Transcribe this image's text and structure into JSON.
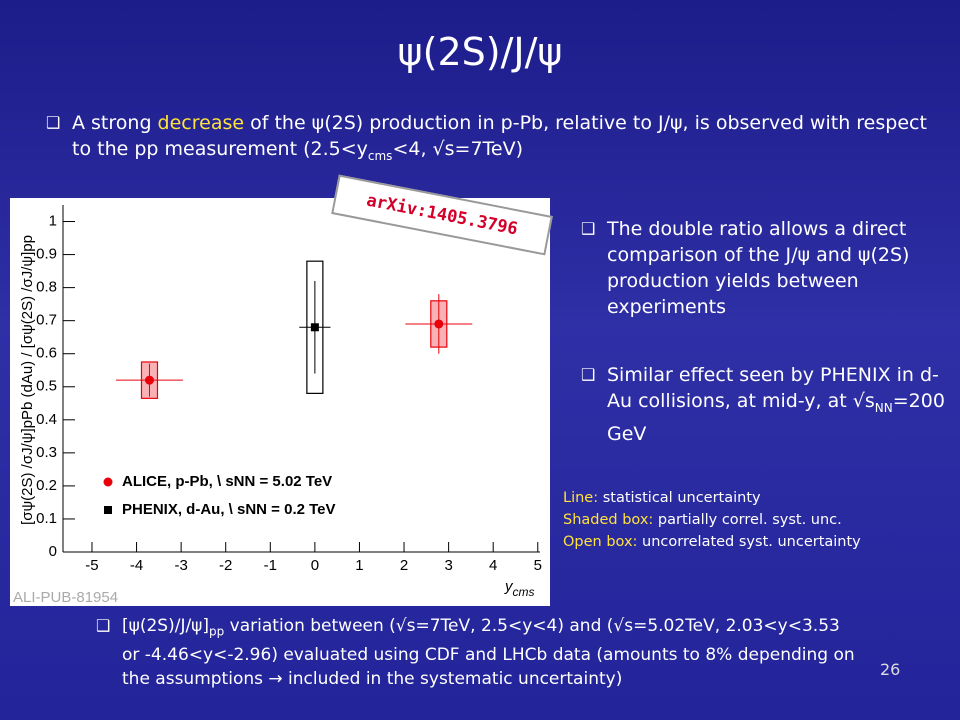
{
  "title": "ψ(2S)/J/ψ",
  "bullet_top": {
    "parts": [
      "A strong ",
      "decrease",
      " of the ψ(2S) production in p-Pb, relative to J/ψ, is observed with respect to the pp measurement (2.5<y",
      "cms",
      "<4, √s=7TeV)"
    ]
  },
  "bullets_right": [
    {
      "parts": [
        "The double ratio allows a direct comparison of the J/ψ and ψ(2S) production yields between experiments"
      ]
    },
    {
      "parts": [
        "Similar effect seen by PHENIX in d-Au collisions, at mid-y, at √s",
        "NN",
        "=200 GeV"
      ]
    }
  ],
  "notes": [
    {
      "label": "Line:",
      "text": " statistical uncertainty"
    },
    {
      "label": "Shaded box:",
      "text": " partially correl. syst. unc."
    },
    {
      "label": "Open box:",
      "text": " uncorrelated syst. uncertainty"
    }
  ],
  "bullet_bottom": {
    "parts": [
      "[ψ(2S)/J/ψ]",
      "pp",
      " variation between (√s=7TeV, 2.5<y<4) and (√s=5.02TeV, 2.03<y<3.53 or -4.46<y<-2.96)   evaluated using CDF and LHCb data (amounts to 8% depending on the assumptions → included in the systematic uncertainty)"
    ]
  },
  "page_number": "26",
  "chart_data": {
    "type": "scatter",
    "x_label": {
      "parts": [
        "y",
        "cms"
      ]
    },
    "y_label": "[σψ(2S) /σJ/ψ]pPb (dAu) / [σψ(2S) /σJ/ψ]pp",
    "annotations": [
      "ALI-PUB-81954",
      "arXiv:1405.3796"
    ],
    "xlim": [
      -5.65,
      5.05
    ],
    "ylim": [
      0,
      1.05
    ],
    "xticks": [
      -5,
      -4,
      -3,
      -2,
      -1,
      0,
      1,
      2,
      3,
      4,
      5
    ],
    "yticks": [
      0,
      0.1,
      0.2,
      0.3,
      0.4,
      0.5,
      0.6,
      0.7,
      0.8,
      0.9,
      1
    ],
    "legend": "lower left",
    "series": [
      {
        "name": "ALICE, p-Pb, \\ sNN = 5.02 TeV",
        "color": "#e8000b",
        "marker": "circle",
        "syst_box": "shaded",
        "x": [
          -3.71,
          2.78
        ],
        "values": [
          0.52,
          0.69
        ],
        "x_err": [
          0.75,
          0.75
        ],
        "stat_err": [
          0.05,
          0.09
        ],
        "syst_err": [
          0.055,
          0.07
        ]
      },
      {
        "name": "PHENIX, d-Au, \\ sNN = 0.2 TeV",
        "color": "#000000",
        "marker": "square",
        "syst_box": "open",
        "x": [
          0
        ],
        "values": [
          0.68
        ],
        "x_err": [
          0.35
        ],
        "stat_err": [
          0.14
        ],
        "syst_err": [
          0.2
        ]
      }
    ]
  }
}
